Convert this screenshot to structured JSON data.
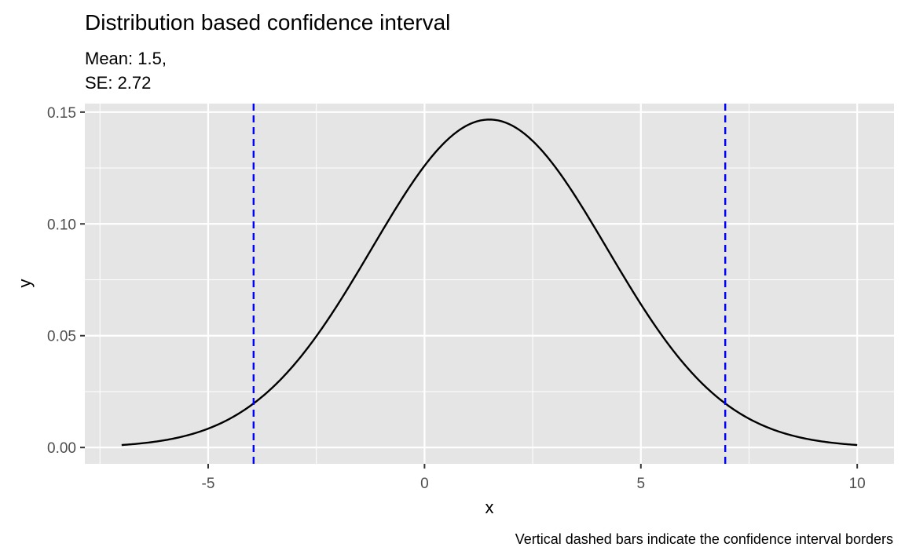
{
  "chart_data": {
    "type": "line",
    "title": "Distribution based confidence interval",
    "subtitle_lines": [
      "Mean: 1.5,",
      "SE: 2.72"
    ],
    "caption": "Vertical dashed bars indicate the confidence interval borders",
    "xlabel": "x",
    "ylabel": "y",
    "xlim": [
      -7.85,
      10.85
    ],
    "ylim": [
      -0.0073,
      0.1538
    ],
    "x_ticks": [
      -5,
      0,
      5,
      10
    ],
    "x_tick_labels": [
      "-5",
      "0",
      "5",
      "10"
    ],
    "y_ticks": [
      0,
      0.05,
      0.1,
      0.15
    ],
    "y_tick_labels": [
      "0.00",
      "0.05",
      "0.10",
      "0.15"
    ],
    "x_minor_ticks": [
      -7.5,
      -2.5,
      2.5,
      7.5
    ],
    "y_minor_ticks": [
      0.025,
      0.075,
      0.125
    ],
    "grid": true,
    "series": [
      {
        "type": "line",
        "color": "#000000",
        "distribution": "normal",
        "mean": 1.5,
        "sd": 2.72,
        "x_range": [
          -7,
          10
        ]
      }
    ],
    "reference_lines": [
      {
        "orientation": "vertical",
        "x": -3.95,
        "color": "#0000ff",
        "style": "dashed"
      },
      {
        "orientation": "vertical",
        "x": 6.95,
        "color": "#0000ff",
        "style": "dashed"
      }
    ],
    "panel_background": "#e5e5e5",
    "grid_color": "#ffffff"
  }
}
